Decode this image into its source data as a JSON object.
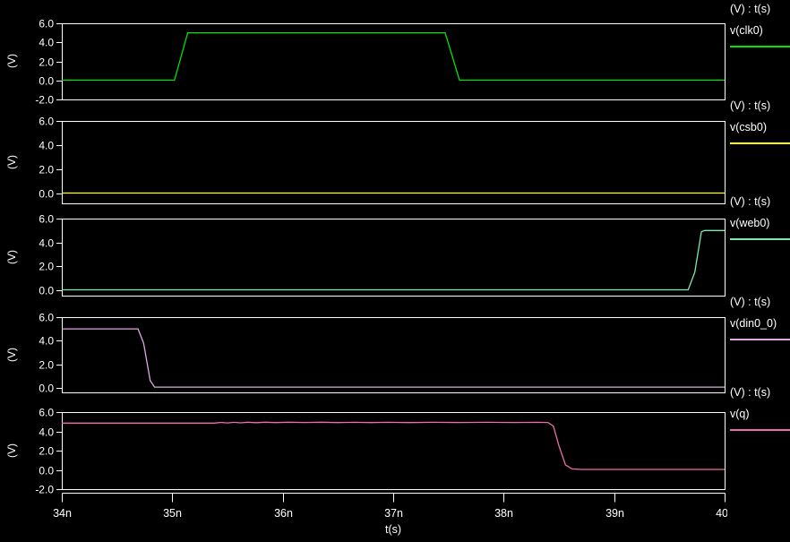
{
  "chart_data": {
    "type": "line",
    "title": "",
    "xaxis": {
      "label": "t(s)",
      "ticks": [
        "34n",
        "35n",
        "36n",
        "37n",
        "38n",
        "39n",
        "40n"
      ],
      "tick_values": [
        34,
        35,
        36,
        37,
        38,
        39,
        40
      ],
      "range": [
        34,
        40
      ],
      "units": "nanoseconds"
    },
    "panels": [
      {
        "id": "clk0",
        "axis_title": "(V) : t(s)",
        "legend_label": "v(clk0)",
        "ylabel": "(V)",
        "color": "#00e400",
        "ylim": [
          -2,
          6
        ],
        "yticks": [
          {
            "v": 6,
            "label": "6.0"
          },
          {
            "v": 4,
            "label": "4.0"
          },
          {
            "v": 2,
            "label": "2.0"
          },
          {
            "v": 0,
            "label": "0.0"
          },
          {
            "v": -2,
            "label": "-2.0"
          }
        ],
        "points": [
          [
            34,
            0.02
          ],
          [
            35.02,
            0.02
          ],
          [
            35.14,
            5
          ],
          [
            37.47,
            5
          ],
          [
            37.6,
            0.02
          ],
          [
            40,
            0.02
          ]
        ]
      },
      {
        "id": "csb0",
        "axis_title": "(V) : t(s)",
        "legend_label": "v(csb0)",
        "ylabel": "(V)",
        "color": "#ffff00",
        "ylim": [
          -0.82,
          6
        ],
        "yticks": [
          {
            "v": 6,
            "label": "6.0"
          },
          {
            "v": 4,
            "label": "4.0"
          },
          {
            "v": 2,
            "label": "2.0"
          },
          {
            "v": 0,
            "label": "0.0"
          }
        ],
        "points": [
          [
            34,
            0.03
          ],
          [
            40,
            0.03
          ]
        ]
      },
      {
        "id": "web0",
        "axis_title": "(V) : t(s)",
        "legend_label": "v(web0)",
        "ylabel": "(V)",
        "color": "#7ce9af",
        "ylim": [
          -0.45,
          6
        ],
        "yticks": [
          {
            "v": 6,
            "label": "6.0"
          },
          {
            "v": 4,
            "label": "4.0"
          },
          {
            "v": 2,
            "label": "2.0"
          },
          {
            "v": 0,
            "label": "0.0"
          }
        ],
        "points": [
          [
            34,
            0.04
          ],
          [
            39.67,
            0.04
          ],
          [
            39.73,
            1.5
          ],
          [
            39.79,
            4.9
          ],
          [
            39.82,
            5
          ],
          [
            40,
            5
          ]
        ]
      },
      {
        "id": "din0_0",
        "axis_title": "(V) : t(s)",
        "legend_label": "v(din0_0)",
        "ylabel": "(V)",
        "color": "#dcaae0",
        "ylim": [
          -0.4,
          6
        ],
        "yticks": [
          {
            "v": 6,
            "label": "6.0"
          },
          {
            "v": 4,
            "label": "4.0"
          },
          {
            "v": 2,
            "label": "2.0"
          },
          {
            "v": 0,
            "label": "0.0"
          }
        ],
        "points": [
          [
            34,
            5
          ],
          [
            34.69,
            5
          ],
          [
            34.74,
            3.8
          ],
          [
            34.8,
            0.6
          ],
          [
            34.84,
            0.05
          ],
          [
            40,
            0.05
          ]
        ]
      },
      {
        "id": "q",
        "axis_title": "(V) : t(s)",
        "legend_label": "v(q)",
        "ylabel": "(V)",
        "color": "#ee6da8",
        "ylim": [
          -2,
          6
        ],
        "yticks": [
          {
            "v": 6,
            "label": "6.0"
          },
          {
            "v": 4,
            "label": "4.0"
          },
          {
            "v": 2,
            "label": "2.0"
          },
          {
            "v": 0,
            "label": "0.0"
          },
          {
            "v": -2,
            "label": "-2.0"
          }
        ],
        "points": [
          [
            34,
            4.86
          ],
          [
            35.38,
            4.86
          ],
          [
            35.44,
            4.93
          ],
          [
            35.5,
            4.87
          ],
          [
            35.56,
            4.94
          ],
          [
            35.62,
            4.88
          ],
          [
            35.68,
            4.95
          ],
          [
            35.76,
            4.9
          ],
          [
            35.84,
            4.95
          ],
          [
            35.94,
            4.91
          ],
          [
            36.05,
            4.95
          ],
          [
            36.2,
            4.92
          ],
          [
            36.35,
            4.95
          ],
          [
            36.5,
            4.91
          ],
          [
            36.65,
            4.94
          ],
          [
            36.8,
            4.91
          ],
          [
            36.95,
            4.94
          ],
          [
            37.15,
            4.91
          ],
          [
            37.35,
            4.94
          ],
          [
            37.6,
            4.92
          ],
          [
            37.85,
            4.94
          ],
          [
            38.1,
            4.92
          ],
          [
            38.3,
            4.94
          ],
          [
            38.4,
            4.92
          ],
          [
            38.45,
            4.55
          ],
          [
            38.5,
            2.5
          ],
          [
            38.56,
            0.5
          ],
          [
            38.62,
            0.1
          ],
          [
            38.7,
            0.05
          ],
          [
            40,
            0.05
          ]
        ]
      }
    ],
    "layout_hints": {
      "background": "#000000",
      "frame_color": "#ffffff",
      "grid": false,
      "legend_position": "right"
    }
  }
}
